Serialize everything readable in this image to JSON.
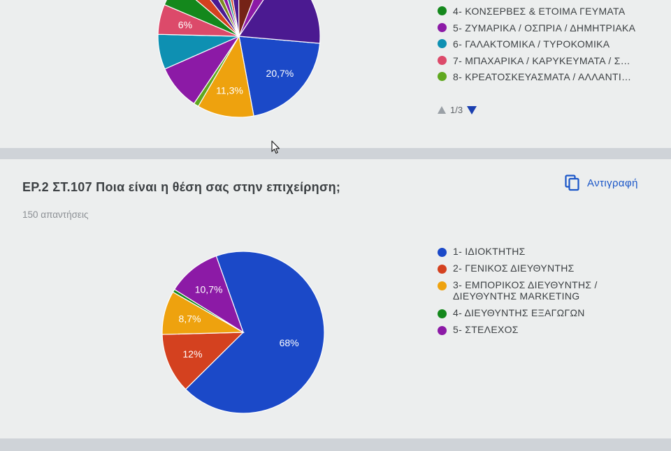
{
  "colors": {
    "c1": "#1b49c8",
    "c2": "#d4411f",
    "c3": "#eea20e",
    "c4": "#14881c",
    "c5": "#8c1aa6",
    "c6": "#0e90b2",
    "c7": "#dc4a6a",
    "c8": "#5fa81f",
    "c9": "#752317",
    "c10": "#4b1a91",
    "c11": "#7c8c22",
    "c12": "#2a8f8a",
    "accent": "#1a56c8"
  },
  "top_chart": {
    "legend": [
      "4- ΚΟΝΣΕΡΒΕΣ & ΕΤΟΙΜΑ ΓΕΥΜΑΤΑ",
      "5- ΖΥΜΑΡΙΚΑ / ΟΣΠΡΙΑ / ΔΗΜΗΤΡΙΑΚΑ",
      "6- ΓΑΛΑΚΤΟΜΙΚΑ / ΤΥΡΟΚΟΜΙΚΑ",
      "7- ΜΠΑΧΑΡΙΚΑ / ΚΑΡΥΚΕΥΜΑΤΑ / Σ…",
      "8- ΚΡΕΑΤΟΣΚΕΥΑΣΜΑΤΑ / ΑΛΛΑΝΤΙ…"
    ],
    "legend_colors": [
      "#14881c",
      "#8c1aa6",
      "#0e90b2",
      "#dc4a6a",
      "#5fa81f"
    ],
    "pager": "1/3",
    "slice_labels": [
      "20,7%",
      "11,3%",
      "6%",
      "6%"
    ]
  },
  "question": {
    "title": "ΕΡ.2 ΣΤ.107 Ποια είναι η θέση σας στην επιχείρηση;",
    "responses": "150 απαντήσεις",
    "copy_label": "Αντιγραφή"
  },
  "chart_data": [
    {
      "type": "pie",
      "categories": [
        "1- ΙΔΙΟΚΤΗΤΗΣ",
        "2- ΓΕΝΙΚΟΣ ΔΙΕΥΘΥΝΤΗΣ",
        "3- ΕΜΠΟΡΙΚΟΣ ΔΙΕΥΘΥΝΤΗΣ / ΔΙΕΥΘΥΝΤΗΣ MARKETING",
        "4- ΔΙΕΥΘΥΝΤΗΣ ΕΞΑΓΩΓΩΝ",
        "5- ΣΤΕΛΕΧΟΣ"
      ],
      "legend_labels": [
        "1- ΙΔΙΟΚΤΗΤΗΣ",
        "2- ΓΕΝΙΚΟΣ ΔΙΕΥΘΥΝΤΗΣ",
        "3- ΕΜΠΟΡΙΚΟΣ ΔΙΕΥΘΥΝΤΗΣ /\nΔΙΕΥΘΥΝΤΗΣ MARKETING",
        "4- ΔΙΕΥΘΥΝΤΗΣ ΕΞΑΓΩΓΩΝ",
        "5- ΣΤΕΛΕΧΟΣ"
      ],
      "values": [
        68,
        12,
        8.7,
        0.6,
        10.7
      ],
      "value_labels": [
        "68%",
        "12%",
        "8,7%",
        "",
        "10,7%"
      ],
      "colors": [
        "#1b49c8",
        "#d4411f",
        "#eea20e",
        "#14881c",
        "#8c1aa6"
      ],
      "legend_placement": "right"
    }
  ]
}
